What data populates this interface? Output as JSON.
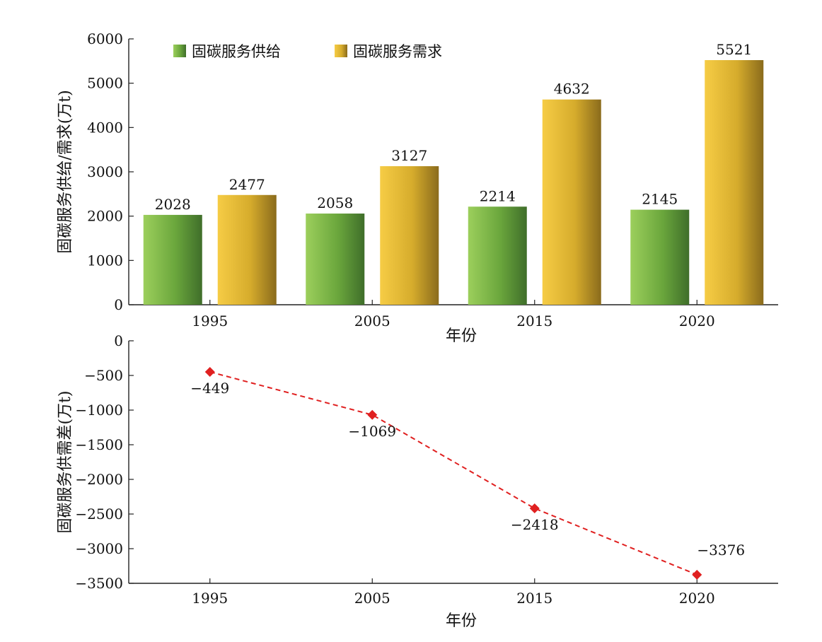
{
  "chart_data": [
    {
      "type": "bar",
      "categories": [
        "1995",
        "2005",
        "2015",
        "2020"
      ],
      "series": [
        {
          "name": "固碳服务供给",
          "values": [
            2028,
            2058,
            2214,
            2145
          ],
          "color": "#6aa63c"
        },
        {
          "name": "固碳服务需求",
          "values": [
            2477,
            3127,
            4632,
            5521
          ],
          "color": "#d6ac2c"
        }
      ],
      "data_labels": [
        [
          "2028",
          "2058",
          "2214",
          "2145"
        ],
        [
          "2477",
          "3127",
          "4632",
          "5521"
        ]
      ],
      "xlabel": "年份",
      "ylabel": "固碳服务供给/需求(万t)",
      "ylim": [
        0,
        6000
      ],
      "yticks": [
        0,
        1000,
        2000,
        3000,
        4000,
        5000,
        6000
      ],
      "ytick_labels": [
        "0",
        "1000",
        "2000",
        "3000",
        "4000",
        "5000",
        "6000"
      ],
      "grid": false,
      "legend_position": "top-left"
    },
    {
      "type": "line",
      "x": [
        "1995",
        "2005",
        "2015",
        "2020"
      ],
      "values": [
        -449,
        -1069,
        -2418,
        -3376
      ],
      "data_labels": [
        "−449",
        "−1069",
        "−2418",
        "−3376"
      ],
      "line_color": "#e02020",
      "line_style": "dashed",
      "marker": "diamond",
      "xlabel": "年份",
      "ylabel": "固碳服务供需差(万t)",
      "ylim": [
        -3500,
        0
      ],
      "yticks": [
        0,
        -500,
        -1000,
        -1500,
        -2000,
        -2500,
        -3000,
        -3500
      ],
      "ytick_labels": [
        "0",
        "−500",
        "−1000",
        "−1500",
        "−2000",
        "−2500",
        "−3000",
        "−3500"
      ],
      "grid": false
    }
  ]
}
